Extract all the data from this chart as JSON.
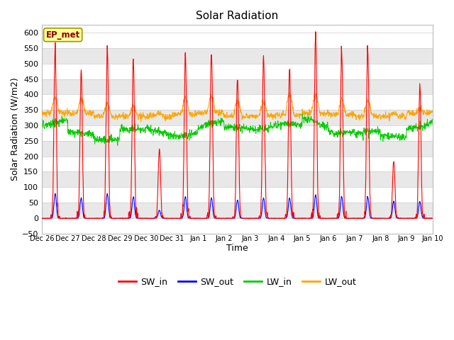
{
  "title": "Solar Radiation",
  "ylabel": "Solar Radiation (W/m2)",
  "xlabel": "Time",
  "label_text": "EP_met",
  "ylim": [
    -50,
    625
  ],
  "yticks": [
    -50,
    0,
    50,
    100,
    150,
    200,
    250,
    300,
    350,
    400,
    450,
    500,
    550,
    600
  ],
  "series_colors": {
    "SW_in": "#FF0000",
    "SW_out": "#0000FF",
    "LW_in": "#00CC00",
    "LW_out": "#FFA500"
  },
  "figure_facecolor": "#FFFFFF",
  "axes_facecolor": "#FFFFFF",
  "band_colors": [
    "#FFFFFF",
    "#E8E8E8"
  ],
  "days": [
    "Dec 26",
    "Dec 27",
    "Dec 28",
    "Dec 29",
    "Dec 30",
    "Dec 31",
    "Jan 1",
    "Jan 2",
    "Jan 3",
    "Jan 4",
    "Jan 5",
    "Jan 6",
    "Jan 7",
    "Jan 8",
    "Jan 9",
    "Jan 10"
  ],
  "SW_in_peaks": [
    555,
    480,
    555,
    515,
    225,
    535,
    535,
    455,
    520,
    485,
    595,
    550,
    550,
    185,
    430,
    0
  ],
  "SW_out_peaks": [
    80,
    65,
    80,
    70,
    25,
    70,
    65,
    60,
    65,
    65,
    75,
    70,
    70,
    55,
    55,
    0
  ],
  "LW_in_base": [
    295,
    260,
    250,
    280,
    290,
    290,
    305,
    285,
    285,
    285,
    310,
    295,
    285,
    270,
    300,
    310
  ],
  "LW_out_base": [
    340,
    340,
    330,
    330,
    330,
    335,
    340,
    330,
    330,
    335,
    340,
    335,
    330,
    330,
    340,
    340
  ],
  "LW_out_day_peak": [
    390,
    385,
    370,
    360,
    340,
    390,
    395,
    380,
    375,
    400,
    400,
    385,
    380,
    340,
    355,
    340
  ]
}
